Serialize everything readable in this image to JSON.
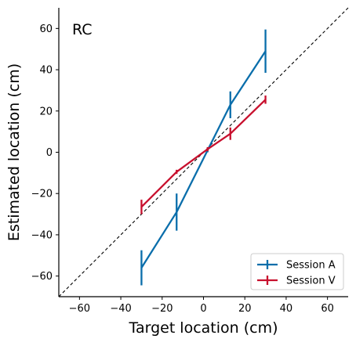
{
  "chart_data": {
    "type": "line",
    "title": "",
    "panel_label": "RC",
    "xlabel": "Target location (cm)",
    "ylabel": "Estimated location (cm)",
    "xlim": [
      -70,
      70
    ],
    "ylim": [
      -70,
      70
    ],
    "xticks": [
      -60,
      -40,
      -20,
      0,
      20,
      40,
      60
    ],
    "yticks": [
      -60,
      -40,
      -20,
      0,
      20,
      40,
      60
    ],
    "xtick_labels": [
      "−60",
      "−40",
      "−20",
      "0",
      "20",
      "40",
      "60"
    ],
    "ytick_labels": [
      "−60",
      "−40",
      "−20",
      "0",
      "20",
      "40",
      "60"
    ],
    "grid": false,
    "legend_position": "lower-right",
    "reference_line": {
      "style": "dashed",
      "color": "#000000",
      "slope": 1,
      "intercept": 0
    },
    "x": [
      -30,
      -13,
      2,
      13,
      30
    ],
    "series": [
      {
        "name": "Session A",
        "color": "#0a6eab",
        "x": [
          -30,
          -13,
          2,
          13,
          30
        ],
        "y": [
          -56,
          -29,
          1,
          23,
          49
        ],
        "error": [
          8.5,
          9,
          1,
          6.5,
          10.5
        ]
      },
      {
        "name": "Session V",
        "color": "#c8102e",
        "x": [
          -30,
          -13,
          2,
          13,
          30
        ],
        "y": [
          -26.5,
          -9.5,
          1.5,
          9,
          25.5
        ],
        "error": [
          3.5,
          1,
          1,
          3,
          2
        ]
      }
    ]
  }
}
